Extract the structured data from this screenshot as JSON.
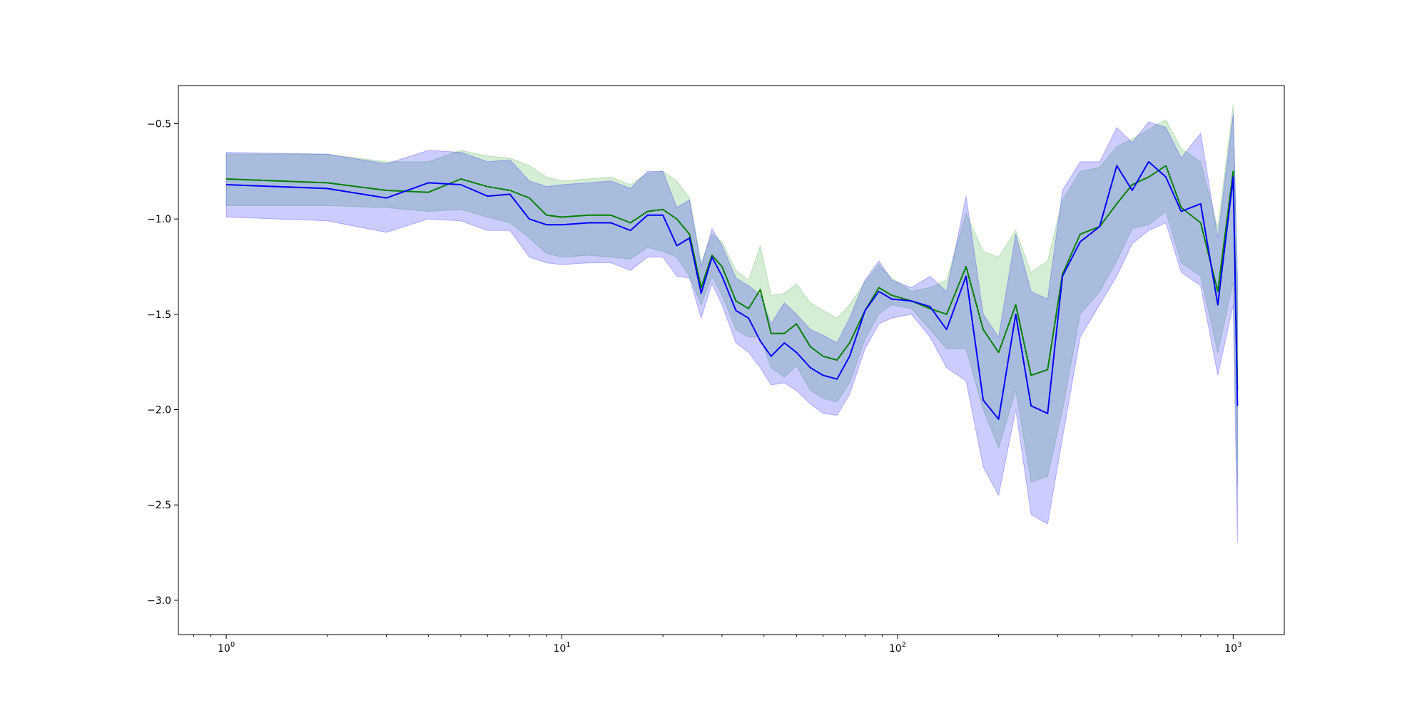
{
  "chart_data": {
    "type": "line",
    "title": "",
    "xlabel": "",
    "ylabel": "",
    "x_scale": "log",
    "xlim": [
      0.72,
      1420
    ],
    "ylim": [
      -3.18,
      -0.3
    ],
    "grid": false,
    "legend": "none",
    "x_ticks": [
      {
        "value": 1,
        "base": "10",
        "exp": "0"
      },
      {
        "value": 10,
        "base": "10",
        "exp": "1"
      },
      {
        "value": 100,
        "base": "10",
        "exp": "2"
      },
      {
        "value": 1000,
        "base": "10",
        "exp": "3"
      }
    ],
    "y_ticks": [
      {
        "value": -0.5,
        "label": "−0.5"
      },
      {
        "value": -1.0,
        "label": "−1.0"
      },
      {
        "value": -1.5,
        "label": "−1.5"
      },
      {
        "value": -2.0,
        "label": "−2.0"
      },
      {
        "value": -2.5,
        "label": "−2.5"
      },
      {
        "value": -3.0,
        "label": "−3.0"
      }
    ],
    "series": [
      {
        "color": "#008000",
        "band_color": "#2ca02c",
        "x": [
          1,
          2,
          3,
          4,
          5,
          6,
          7,
          8,
          9,
          10,
          12,
          14,
          16,
          18,
          20,
          22,
          24,
          26,
          28,
          30,
          33,
          36,
          39,
          42,
          46,
          50,
          55,
          60,
          66,
          72,
          80,
          88,
          96,
          110,
          125,
          140,
          160,
          180,
          200,
          225,
          250,
          280,
          310,
          350,
          400,
          450,
          500,
          560,
          630,
          700,
          800,
          900,
          1000,
          1030
        ],
        "y": [
          -0.79,
          -0.81,
          -0.85,
          -0.86,
          -0.79,
          -0.83,
          -0.85,
          -0.89,
          -0.98,
          -0.99,
          -0.98,
          -0.98,
          -1.02,
          -0.96,
          -0.95,
          -1.0,
          -1.08,
          -1.36,
          -1.19,
          -1.25,
          -1.43,
          -1.47,
          -1.37,
          -1.6,
          -1.6,
          -1.55,
          -1.67,
          -1.72,
          -1.74,
          -1.65,
          -1.48,
          -1.36,
          -1.4,
          -1.43,
          -1.47,
          -1.5,
          -1.25,
          -1.58,
          -1.7,
          -1.45,
          -1.82,
          -1.79,
          -1.29,
          -1.08,
          -1.04,
          -0.92,
          -0.82,
          -0.78,
          -0.72,
          -0.94,
          -1.02,
          -1.38,
          -0.75,
          -1.9
        ],
        "lower": [
          -0.93,
          -0.93,
          -0.94,
          -0.96,
          -0.95,
          -0.99,
          -1.02,
          -1.1,
          -1.18,
          -1.2,
          -1.19,
          -1.2,
          -1.21,
          -1.15,
          -1.17,
          -1.2,
          -1.3,
          -1.45,
          -1.3,
          -1.4,
          -1.58,
          -1.62,
          -1.62,
          -1.78,
          -1.83,
          -1.77,
          -1.9,
          -1.94,
          -1.96,
          -1.86,
          -1.63,
          -1.5,
          -1.45,
          -1.47,
          -1.58,
          -1.68,
          -1.68,
          -2.0,
          -2.2,
          -1.9,
          -2.38,
          -2.35,
          -2.0,
          -1.5,
          -1.38,
          -1.22,
          -1.05,
          -1.03,
          -0.96,
          -1.23,
          -1.3,
          -1.7,
          -1.33,
          -2.4
        ],
        "upper": [
          -0.66,
          -0.66,
          -0.7,
          -0.7,
          -0.64,
          -0.67,
          -0.68,
          -0.72,
          -0.78,
          -0.8,
          -0.79,
          -0.78,
          -0.82,
          -0.76,
          -0.75,
          -0.8,
          -0.89,
          -1.23,
          -1.08,
          -1.12,
          -1.27,
          -1.32,
          -1.14,
          -1.4,
          -1.39,
          -1.34,
          -1.44,
          -1.48,
          -1.52,
          -1.45,
          -1.33,
          -1.24,
          -1.31,
          -1.38,
          -1.36,
          -1.32,
          -0.97,
          -1.17,
          -1.2,
          -1.06,
          -1.28,
          -1.22,
          -0.9,
          -0.75,
          -0.73,
          -0.62,
          -0.58,
          -0.53,
          -0.48,
          -0.63,
          -0.7,
          -1.05,
          -0.4,
          -1.38
        ]
      },
      {
        "color": "#0000ff",
        "band_color": "#0000ff",
        "x": [
          1,
          2,
          3,
          4,
          5,
          6,
          7,
          8,
          9,
          10,
          12,
          14,
          16,
          18,
          20,
          22,
          24,
          26,
          28,
          30,
          33,
          36,
          39,
          42,
          46,
          50,
          55,
          60,
          66,
          72,
          80,
          88,
          96,
          110,
          125,
          140,
          160,
          180,
          200,
          225,
          250,
          280,
          310,
          350,
          400,
          450,
          500,
          560,
          630,
          700,
          800,
          900,
          1000,
          1030
        ],
        "y": [
          -0.82,
          -0.84,
          -0.89,
          -0.81,
          -0.82,
          -0.88,
          -0.87,
          -1.0,
          -1.03,
          -1.03,
          -1.02,
          -1.02,
          -1.06,
          -0.98,
          -0.98,
          -1.14,
          -1.1,
          -1.39,
          -1.2,
          -1.3,
          -1.48,
          -1.52,
          -1.64,
          -1.72,
          -1.65,
          -1.7,
          -1.78,
          -1.82,
          -1.84,
          -1.72,
          -1.48,
          -1.38,
          -1.42,
          -1.43,
          -1.46,
          -1.58,
          -1.3,
          -1.95,
          -2.05,
          -1.5,
          -1.98,
          -2.02,
          -1.3,
          -1.12,
          -1.04,
          -0.72,
          -0.85,
          -0.7,
          -0.78,
          -0.96,
          -0.92,
          -1.45,
          -0.78,
          -1.98
        ],
        "lower": [
          -0.99,
          -1.01,
          -1.07,
          -1.0,
          -1.01,
          -1.06,
          -1.06,
          -1.2,
          -1.23,
          -1.24,
          -1.23,
          -1.23,
          -1.27,
          -1.2,
          -1.2,
          -1.3,
          -1.31,
          -1.52,
          -1.34,
          -1.45,
          -1.65,
          -1.7,
          -1.78,
          -1.87,
          -1.86,
          -1.9,
          -1.97,
          -2.02,
          -2.03,
          -1.92,
          -1.68,
          -1.55,
          -1.52,
          -1.5,
          -1.62,
          -1.78,
          -1.85,
          -2.3,
          -2.45,
          -2.0,
          -2.55,
          -2.6,
          -2.15,
          -1.62,
          -1.45,
          -1.3,
          -1.13,
          -1.06,
          -1.02,
          -1.28,
          -1.35,
          -1.82,
          -1.45,
          -2.7
        ],
        "upper": [
          -0.65,
          -0.66,
          -0.71,
          -0.64,
          -0.65,
          -0.7,
          -0.69,
          -0.8,
          -0.83,
          -0.82,
          -0.81,
          -0.8,
          -0.84,
          -0.75,
          -0.75,
          -0.94,
          -0.9,
          -1.25,
          -1.05,
          -1.14,
          -1.31,
          -1.35,
          -1.4,
          -1.55,
          -1.44,
          -1.5,
          -1.58,
          -1.61,
          -1.65,
          -1.52,
          -1.32,
          -1.22,
          -1.32,
          -1.36,
          -1.3,
          -1.38,
          -0.88,
          -1.5,
          -1.62,
          -1.08,
          -1.38,
          -1.42,
          -0.85,
          -0.7,
          -0.7,
          -0.52,
          -0.6,
          -0.49,
          -0.52,
          -0.68,
          -0.55,
          -1.1,
          -0.45,
          -1.3
        ]
      }
    ]
  }
}
